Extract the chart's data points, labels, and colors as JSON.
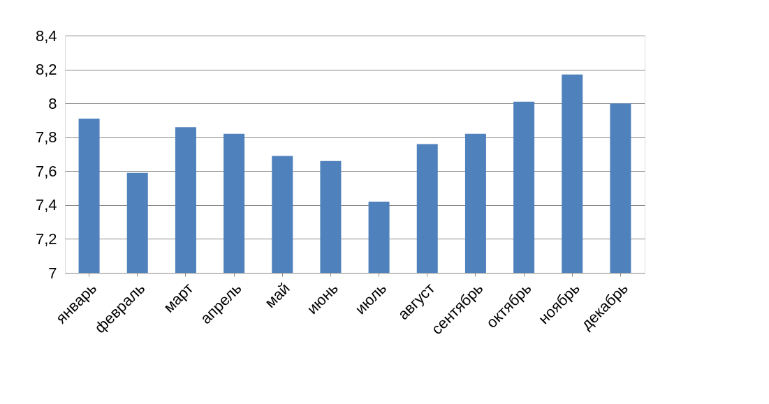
{
  "chart_data": {
    "type": "bar",
    "categories": [
      "январь",
      "февраль",
      "март",
      "апрель",
      "май",
      "июнь",
      "июль",
      "август",
      "сентябрь",
      "октябрь",
      "ноябрь",
      "декабрь"
    ],
    "values": [
      7.91,
      7.59,
      7.86,
      7.82,
      7.69,
      7.66,
      7.42,
      7.76,
      7.82,
      8.01,
      8.17,
      8.0
    ],
    "color": "#4f81bd",
    "ylim": [
      7,
      8.4
    ],
    "yticks": [
      7,
      {
        "value": 7.2,
        "label": "7,2"
      },
      {
        "value": 7.4,
        "label": "7,4"
      },
      {
        "value": 7.6,
        "label": "7,6"
      },
      {
        "value": 7.8,
        "label": "7,8"
      },
      8,
      {
        "value": 8.2,
        "label": "8,2"
      },
      {
        "value": 8.4,
        "label": "8,4"
      }
    ],
    "grid": "y"
  }
}
